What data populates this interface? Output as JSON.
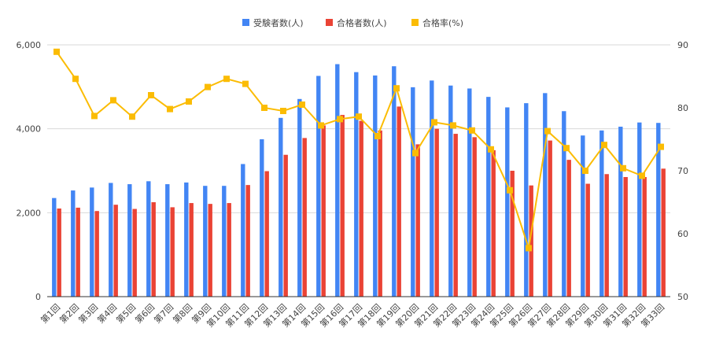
{
  "chart_data": {
    "type": "bar",
    "categories": [
      "第1回",
      "第2回",
      "第3回",
      "第4回",
      "第5回",
      "第6回",
      "第7回",
      "第8回",
      "第9回",
      "第10回",
      "第11回",
      "第12回",
      "第13回",
      "第14回",
      "第15回",
      "第16回",
      "第17回",
      "第18回",
      "第19回",
      "第20回",
      "第21回",
      "第22回",
      "第23回",
      "第24回",
      "第25回",
      "第26回",
      "第27回",
      "第28回",
      "第29回",
      "第30回",
      "第31回",
      "第32回",
      "第33回"
    ],
    "series": [
      {
        "name": "受験者数(人)",
        "kind": "bar",
        "axis": "left",
        "color": "#4285f4",
        "values": [
          2350,
          2530,
          2600,
          2710,
          2680,
          2750,
          2680,
          2720,
          2640,
          2640,
          3160,
          3750,
          4260,
          4710,
          5260,
          5540,
          5350,
          5270,
          5490,
          4990,
          5150,
          5030,
          4960,
          4760,
          4510,
          4610,
          4850,
          4420,
          3840,
          3960,
          4050,
          4150,
          4140
        ]
      },
      {
        "name": "合格者数(人)",
        "kind": "bar",
        "axis": "left",
        "color": "#ea4335",
        "values": [
          2100,
          2120,
          2040,
          2190,
          2090,
          2250,
          2130,
          2230,
          2210,
          2230,
          2660,
          2990,
          3380,
          3780,
          4080,
          4330,
          4190,
          3960,
          4530,
          3630,
          4000,
          3880,
          3800,
          3490,
          3000,
          2650,
          3720,
          3260,
          2690,
          2920,
          2850,
          2850,
          3050
        ]
      },
      {
        "name": "合格率(%)",
        "kind": "line",
        "axis": "right",
        "color": "#fbbc04",
        "values": [
          88.9,
          84.6,
          78.7,
          81.2,
          78.6,
          82.0,
          79.8,
          81.0,
          83.3,
          84.6,
          83.8,
          80.0,
          79.5,
          80.5,
          77.2,
          78.2,
          78.6,
          75.5,
          83.1,
          72.8,
          77.7,
          77.2,
          76.4,
          73.4,
          66.9,
          57.7,
          76.3,
          73.6,
          70.0,
          74.1,
          70.4,
          69.2,
          73.8
        ]
      }
    ],
    "left_axis": {
      "min": 0,
      "max": 6000,
      "ticks": [
        "0",
        "2,000",
        "4,000",
        "6,000"
      ]
    },
    "right_axis": {
      "min": 50,
      "max": 90,
      "ticks": [
        "50",
        "60",
        "70",
        "80",
        "90"
      ]
    },
    "legend_position": "top-center",
    "grid": "horizontal"
  }
}
